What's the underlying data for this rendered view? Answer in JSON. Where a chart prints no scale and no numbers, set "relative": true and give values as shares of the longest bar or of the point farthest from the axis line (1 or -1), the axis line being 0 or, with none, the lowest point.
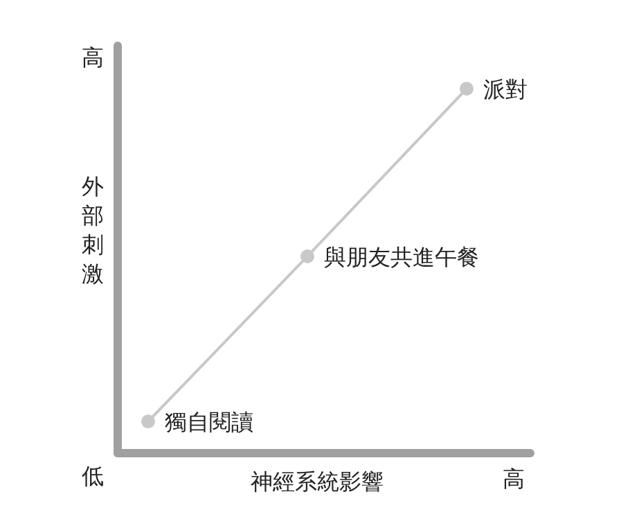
{
  "chart_data": {
    "type": "line",
    "relative": true,
    "xlabel": "神經系統影響",
    "ylabel": "外部刺激",
    "marker": "circle",
    "categories": [
      null,
      null,
      null
    ],
    "series": [
      {
        "color": "#c8c8c8",
        "values": [
          0.087,
          0.54,
          1
        ]
      }
    ],
    "annotations": [
      "低",
      "高",
      "高",
      "獨自閱讀",
      "與朋友共進午餐",
      "派對"
    ]
  }
}
